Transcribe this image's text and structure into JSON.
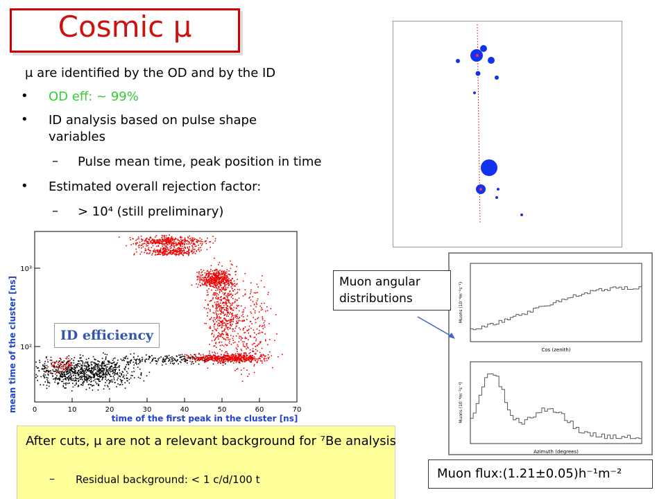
{
  "title": "Cosmic μ",
  "bullets": [
    {
      "level": 0,
      "marker": false,
      "text": "μ are identified by the OD and by the ID"
    },
    {
      "level": 1,
      "marker": true,
      "text": "OD eff: ~ 99%",
      "color": "#33cc33"
    },
    {
      "level": 1,
      "marker": true,
      "text": "ID analysis based on pulse shape variables"
    },
    {
      "level": 2,
      "marker": true,
      "text": "Pulse mean time, peak position in time"
    },
    {
      "level": 1,
      "marker": true,
      "text": "Estimated overall rejection factor:"
    },
    {
      "level": 2,
      "marker": true,
      "text": "> 10⁴ (still preliminary)"
    }
  ],
  "scatter": {
    "x_label": "time of the first peak in the cluster [ns]",
    "y_label": "mean time of the cluster [ns]",
    "xticks": [
      0,
      10,
      20,
      30,
      40,
      50,
      60,
      70
    ],
    "yticks": [
      "10²",
      "10³"
    ],
    "badge": "ID efficiency"
  },
  "histograms": {
    "callout": "Muon angular distributions",
    "top": {
      "x_label": "Cos (zenith)",
      "y_label": "Muons (10⁻⁴m⁻²s⁻¹)"
    },
    "bottom": {
      "x_label": "Azimuth (degrees)",
      "y_label": "Muons (10⁻⁴m⁻²s⁻¹)"
    }
  },
  "flux": "Muon flux:(1.21±0.05)h⁻¹m⁻²",
  "note": {
    "line1": "After cuts, μ are not a relevant background for ⁷Be analysis",
    "sub": "Residual background: < 1 c/d/100 t"
  }
}
